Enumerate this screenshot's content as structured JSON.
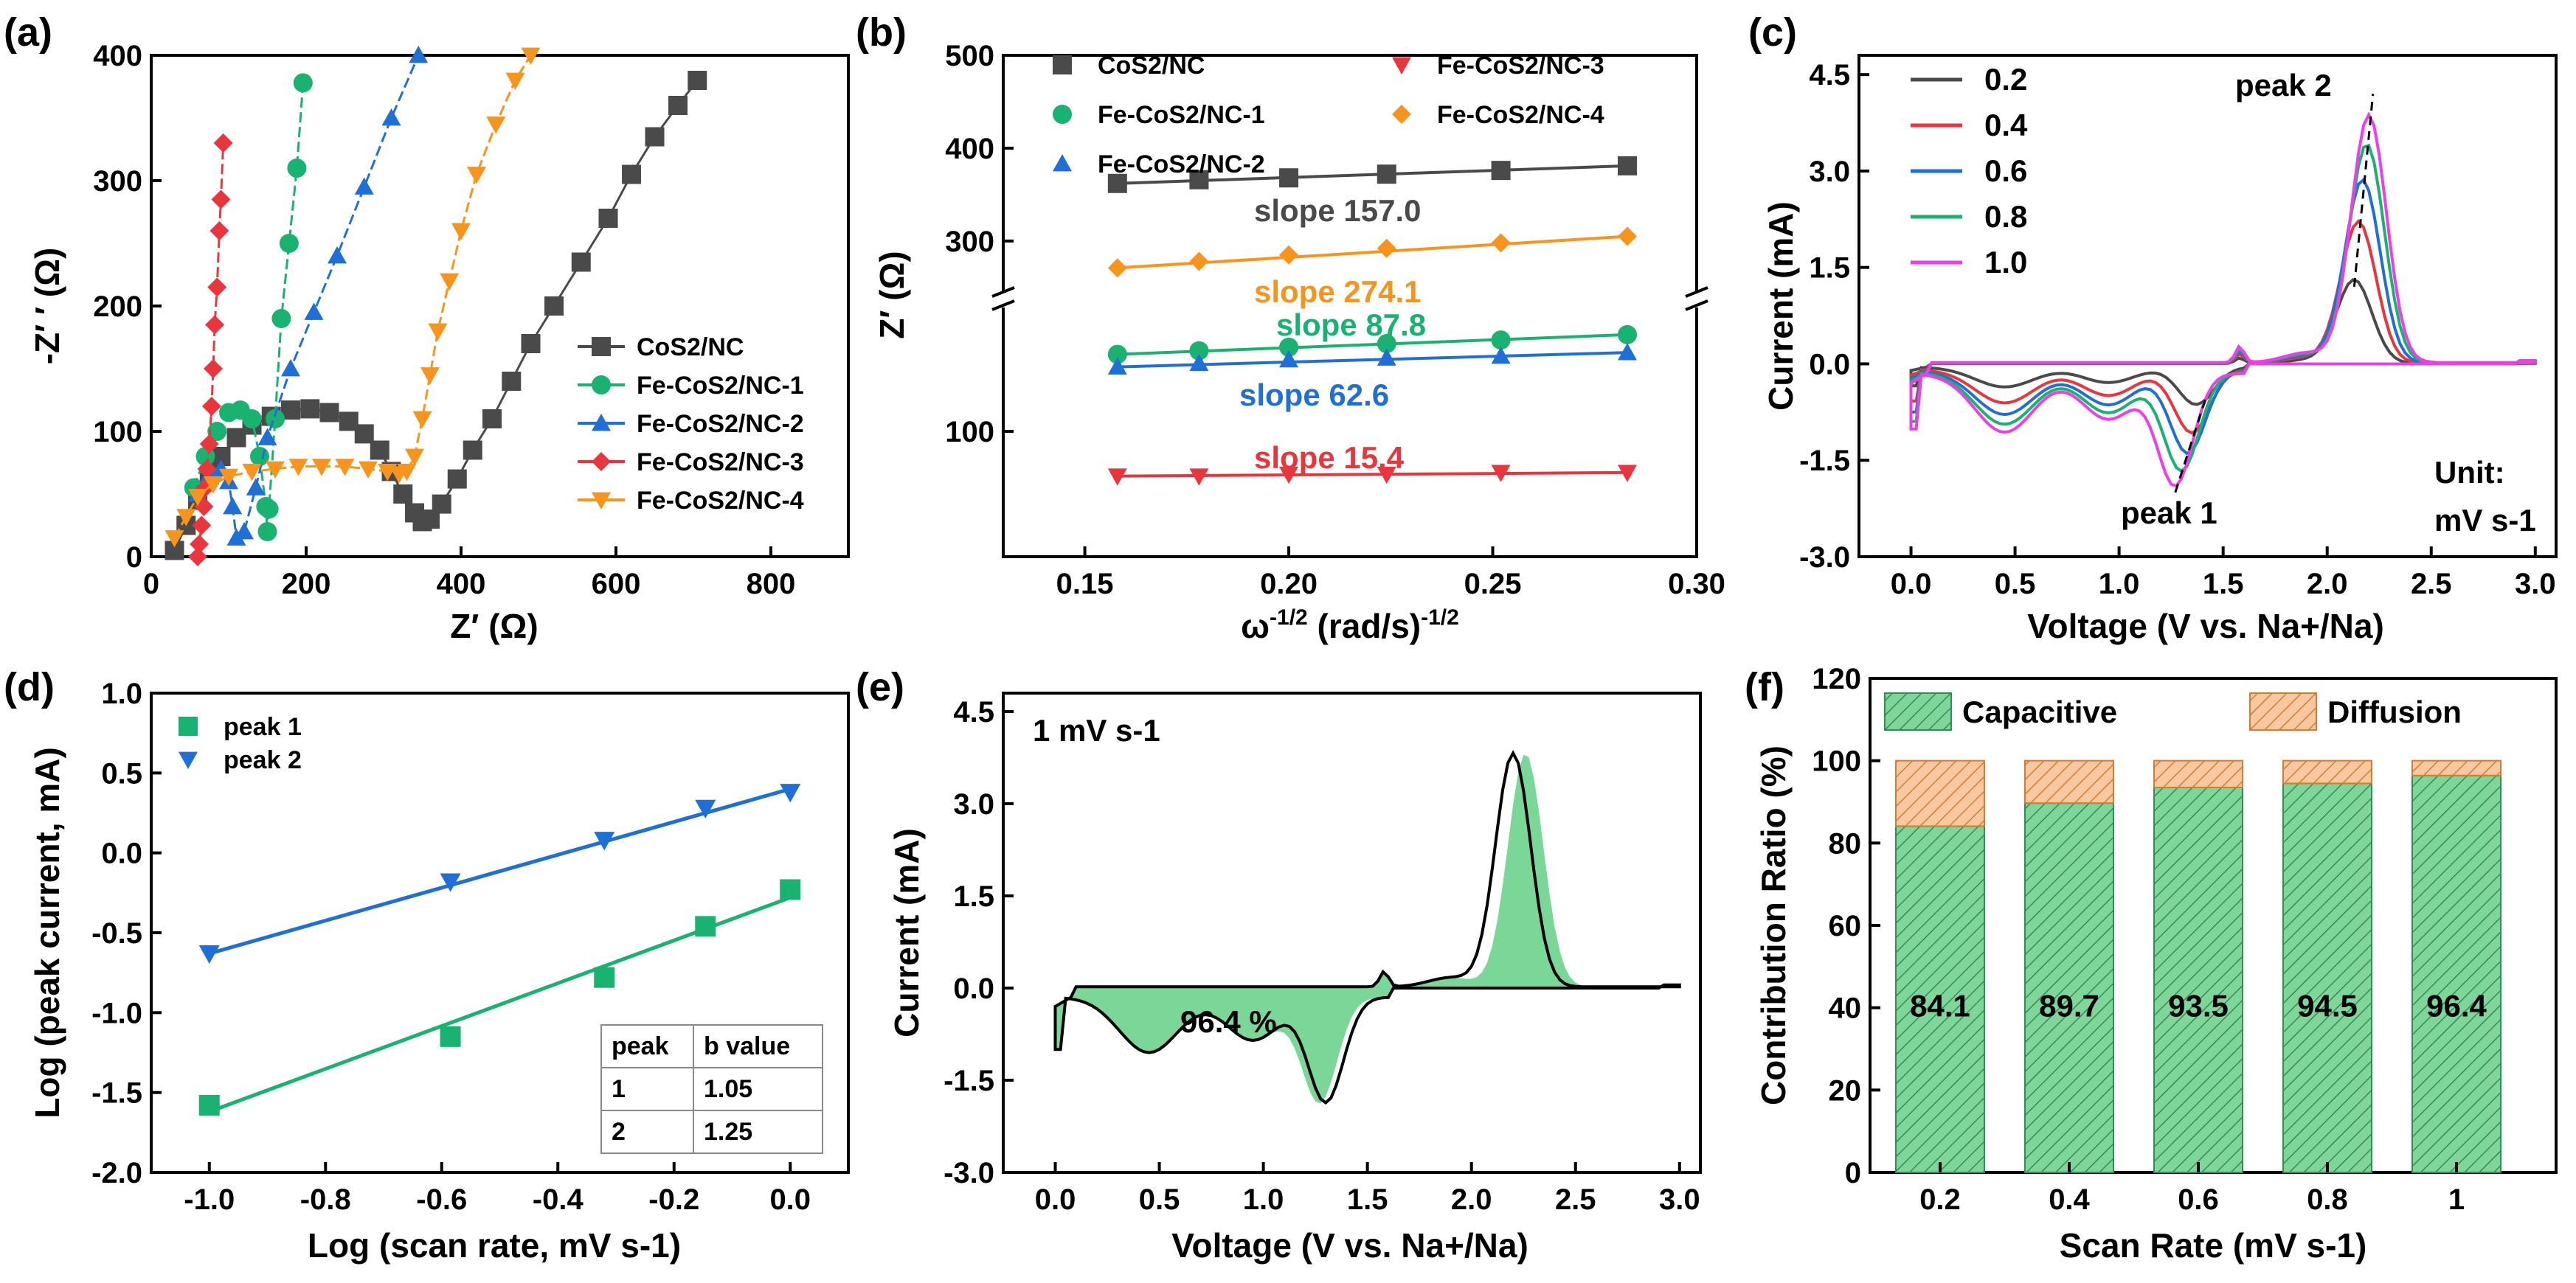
{
  "colors": {
    "CoS2_NC": "#4a4a4a",
    "Fe1": "#19b270",
    "Fe2": "#1f6fd6",
    "Fe3": "#e8363c",
    "Fe4": "#f7941d",
    "cv02": "#4a4a4a",
    "cv04": "#e8363c",
    "cv06": "#1f6fd6",
    "cv08": "#19b270",
    "cv10": "#ee3ee8",
    "capacitive": "#6fd08e",
    "diffusion": "#f5b07a",
    "fill_e": "#7ad798"
  },
  "panels": {
    "a": {
      "label": "(a)",
      "xlabel": "Z′ (Ω)",
      "ylabel": "-Z′ ′ (Ω)",
      "xticks": [
        "0",
        "200",
        "400",
        "600",
        "800"
      ],
      "yticks": [
        "0",
        "100",
        "200",
        "300",
        "400"
      ]
    },
    "b": {
      "label": "(b)",
      "xlabel": "ω-1/2 (rad/s)-1/2",
      "xlabel_main": "ω",
      "xlabel_sup1": "-1/2",
      "xlabel_mid": " (rad/s)",
      "xlabel_sup2": "-1/2",
      "ylabel": "Z′ (Ω)",
      "xticks": [
        "0.15",
        "0.20",
        "0.25",
        "0.30"
      ],
      "yticks_upper": [
        "300",
        "400",
        "500"
      ],
      "yticks_lower": [
        "100"
      ]
    },
    "c": {
      "label": "(c)",
      "xlabel": "Voltage (V vs. Na+/Na)",
      "ylabel": "Current (mA)",
      "xticks": [
        "0.0",
        "0.5",
        "1.0",
        "1.5",
        "2.0",
        "2.5",
        "3.0"
      ],
      "yticks": [
        "-3.0",
        "-1.5",
        "0.0",
        "1.5",
        "3.0",
        "4.5"
      ],
      "peak1": "peak 1",
      "peak2": "peak 2",
      "unit_line1": "Unit:",
      "unit_line2": "mV s-1"
    },
    "d": {
      "label": "(d)",
      "xlabel": "Log (scan rate, mV s-1)",
      "ylabel": "Log (peak current, mA)",
      "xticks": [
        "-1.0",
        "-0.8",
        "-0.6",
        "-0.4",
        "-0.2",
        "0.0"
      ],
      "yticks": [
        "-2.0",
        "-1.5",
        "-1.0",
        "-0.5",
        "0.0",
        "0.5",
        "1.0"
      ],
      "table_header": [
        "peak",
        "b value"
      ],
      "table_rows": [
        [
          "1",
          "1.05"
        ],
        [
          "2",
          "1.25"
        ]
      ]
    },
    "e": {
      "label": "(e)",
      "xlabel": "Voltage (V vs. Na+/Na)",
      "ylabel": "Current (mA)",
      "xticks": [
        "0.0",
        "0.5",
        "1.0",
        "1.5",
        "2.0",
        "2.5",
        "3.0"
      ],
      "yticks": [
        "-3.0",
        "-1.5",
        "0.0",
        "1.5",
        "3.0",
        "4.5"
      ],
      "rate_text": "1 mV s-1",
      "percent_text": "96.4 %"
    },
    "f": {
      "label": "(f)",
      "xlabel": "Scan Rate (mV s-1)",
      "ylabel": "Contribution Ratio (%)",
      "yticks": [
        "0",
        "20",
        "40",
        "60",
        "80",
        "100",
        "120"
      ]
    }
  },
  "chart_data": [
    {
      "panel": "a",
      "type": "scatter",
      "title": "",
      "xlabel": "Z′ (Ω)",
      "ylabel": "-Z′ ′ (Ω)",
      "xlim": [
        0,
        900
      ],
      "ylim": [
        0,
        400
      ],
      "series": [
        {
          "name": "CoS2/NC",
          "marker": "square",
          "color": "#4a4a4a",
          "x": [
            30,
            45,
            60,
            75,
            90,
            110,
            130,
            155,
            180,
            205,
            230,
            255,
            275,
            295,
            310,
            325,
            340,
            350,
            360,
            375,
            395,
            415,
            440,
            465,
            490,
            520,
            555,
            590,
            620,
            650,
            680,
            705
          ],
          "y": [
            5,
            25,
            45,
            65,
            80,
            95,
            105,
            112,
            117,
            118,
            115,
            108,
            98,
            85,
            68,
            50,
            35,
            28,
            30,
            42,
            62,
            85,
            110,
            140,
            170,
            200,
            235,
            270,
            305,
            335,
            360,
            380
          ]
        },
        {
          "name": "Fe-CoS2/NC-1",
          "marker": "circle",
          "color": "#19b270",
          "x": [
            55,
            70,
            85,
            100,
            115,
            130,
            140,
            148,
            150,
            152,
            160,
            168,
            178,
            188,
            196
          ],
          "y": [
            55,
            80,
            100,
            115,
            117,
            110,
            80,
            40,
            20,
            38,
            110,
            190,
            250,
            310,
            378
          ]
        },
        {
          "name": "Fe-CoS2/NC-2",
          "marker": "triangle-up",
          "color": "#1f6fd6",
          "x": [
            60,
            75,
            90,
            100,
            105,
            110,
            120,
            135,
            150,
            180,
            210,
            240,
            275,
            310,
            345
          ],
          "y": [
            50,
            65,
            70,
            60,
            40,
            15,
            20,
            55,
            95,
            150,
            195,
            240,
            295,
            350,
            400
          ]
        },
        {
          "name": "Fe-CoS2/NC-3",
          "marker": "diamond",
          "color": "#e8363c",
          "x": [
            60,
            62,
            65,
            68,
            70,
            72,
            75,
            78,
            80,
            82,
            85,
            88,
            90,
            93
          ],
          "y": [
            0,
            10,
            25,
            40,
            55,
            70,
            90,
            120,
            150,
            185,
            215,
            260,
            285,
            330
          ]
        },
        {
          "name": "Fe-CoS2/NC-4",
          "marker": "triangle-down",
          "color": "#f7941d",
          "x": [
            30,
            45,
            60,
            80,
            100,
            130,
            160,
            190,
            220,
            250,
            280,
            305,
            320,
            330,
            340,
            350,
            360,
            370,
            385,
            400,
            420,
            445,
            470,
            490
          ],
          "y": [
            15,
            32,
            48,
            58,
            64,
            68,
            70,
            72,
            72,
            72,
            70,
            68,
            66,
            68,
            80,
            110,
            145,
            180,
            220,
            260,
            305,
            345,
            380,
            400
          ]
        }
      ]
    },
    {
      "panel": "b",
      "type": "scatter",
      "title": "",
      "xlabel": "ω-1/2 (rad/s)-1/2",
      "ylabel": "Z′ (Ω)",
      "xlim": [
        0.13,
        0.3
      ],
      "axis_break": true,
      "series": [
        {
          "name": "CoS2/NC",
          "marker": "square",
          "color": "#4a4a4a",
          "slope_label": "slope 157.0",
          "x": [
            0.158,
            0.178,
            0.2,
            0.224,
            0.252,
            0.283
          ],
          "y": [
            362,
            366,
            368,
            372,
            376,
            381
          ]
        },
        {
          "name": "Fe-CoS2/NC-1",
          "marker": "circle",
          "color": "#19b270",
          "slope_label": "slope 87.8",
          "x": [
            0.158,
            0.178,
            0.2,
            0.224,
            0.252,
            0.283
          ],
          "y": [
            143,
            145,
            147,
            149,
            151,
            154
          ]
        },
        {
          "name": "Fe-CoS2/NC-2",
          "marker": "triangle-up",
          "color": "#1f6fd6",
          "slope_label": "slope 62.6",
          "x": [
            0.158,
            0.178,
            0.2,
            0.224,
            0.252,
            0.283
          ],
          "y": [
            136,
            138,
            140,
            141,
            142,
            144
          ]
        },
        {
          "name": "Fe-CoS2/NC-3",
          "marker": "triangle-down",
          "color": "#e8363c",
          "slope_label": "slope 15.4",
          "x": [
            0.158,
            0.178,
            0.2,
            0.224,
            0.252,
            0.283
          ],
          "y": [
            75,
            75,
            76,
            76,
            77,
            77
          ]
        },
        {
          "name": "Fe-CoS2/NC-4",
          "marker": "diamond",
          "color": "#f7941d",
          "slope_label": "slope 274.1",
          "x": [
            0.158,
            0.178,
            0.2,
            0.224,
            0.252,
            0.283
          ],
          "y": [
            271,
            278,
            285,
            292,
            298,
            305
          ]
        }
      ],
      "legend": [
        "CoS2/NC",
        "Fe-CoS2/NC-1",
        "Fe-CoS2/NC-2",
        "Fe-CoS2/NC-3",
        "Fe-CoS2/NC-4"
      ]
    },
    {
      "panel": "c",
      "type": "line",
      "title": "",
      "xlabel": "Voltage (V vs. Na+/Na)",
      "ylabel": "Current (mA)",
      "xlim": [
        -0.25,
        3.1
      ],
      "ylim": [
        -3.0,
        4.8
      ],
      "series": [
        {
          "name": "0.2",
          "color": "#4a4a4a",
          "cathodic_peak": [
            1.37,
            -0.6
          ],
          "anodic_peak": [
            2.13,
            1.3
          ]
        },
        {
          "name": "0.4",
          "color": "#e8363c",
          "cathodic_peak": [
            1.35,
            -0.9
          ],
          "anodic_peak": [
            2.15,
            2.2
          ]
        },
        {
          "name": "0.6",
          "color": "#1f6fd6",
          "cathodic_peak": [
            1.33,
            -1.25
          ],
          "anodic_peak": [
            2.17,
            2.85
          ]
        },
        {
          "name": "0.8",
          "color": "#19b270",
          "cathodic_peak": [
            1.3,
            -1.55
          ],
          "anodic_peak": [
            2.19,
            3.4
          ]
        },
        {
          "name": "1.0",
          "color": "#ee3ee8",
          "cathodic_peak": [
            1.27,
            -1.9
          ],
          "anodic_peak": [
            2.2,
            3.85
          ]
        }
      ]
    },
    {
      "panel": "d",
      "type": "scatter",
      "title": "",
      "xlabel": "Log (scan rate, mV s-1)",
      "ylabel": "Log (peak current, mA)",
      "xlim": [
        -1.1,
        0.1
      ],
      "ylim": [
        -2.0,
        1.0
      ],
      "series": [
        {
          "name": "peak 1",
          "marker": "square",
          "color": "#19b270",
          "x": [
            -1.0,
            -0.585,
            -0.32,
            -0.146,
            0.0
          ],
          "y": [
            -1.58,
            -1.15,
            -0.78,
            -0.46,
            -0.23
          ],
          "fit": [
            [
              -1.0,
              -1.62
            ],
            [
              0.0,
              -0.28
            ]
          ]
        },
        {
          "name": "peak 2",
          "marker": "triangle-down",
          "color": "#1f6fd6",
          "x": [
            -1.0,
            -0.585,
            -0.32,
            -0.146,
            0.0
          ],
          "y": [
            -0.63,
            -0.18,
            0.08,
            0.28,
            0.38
          ],
          "fit": [
            [
              -1.0,
              -0.63
            ],
            [
              0.0,
              0.4
            ]
          ]
        }
      ]
    },
    {
      "panel": "e",
      "type": "area",
      "title": "",
      "xlabel": "Voltage (V vs. Na+/Na)",
      "ylabel": "Current (mA)",
      "xlim": [
        -0.25,
        3.1
      ],
      "ylim": [
        -3.0,
        4.8
      ],
      "capacitive_percent": 96.4,
      "scan_rate": "1 mV s-1"
    },
    {
      "panel": "f",
      "type": "bar",
      "stacked": true,
      "title": "",
      "xlabel": "Scan Rate (mV s-1)",
      "ylabel": "Contribution Ratio (%)",
      "ylim": [
        0,
        120
      ],
      "categories": [
        "0.2",
        "0.4",
        "0.6",
        "0.8",
        "1"
      ],
      "series": [
        {
          "name": "Capacitive",
          "values": [
            84.1,
            89.7,
            93.5,
            94.5,
            96.4
          ]
        },
        {
          "name": "Diffusion",
          "values": [
            15.9,
            10.3,
            6.5,
            5.5,
            3.6
          ]
        }
      ],
      "labels": [
        "84.1",
        "89.7",
        "93.5",
        "94.5",
        "96.4"
      ]
    }
  ]
}
